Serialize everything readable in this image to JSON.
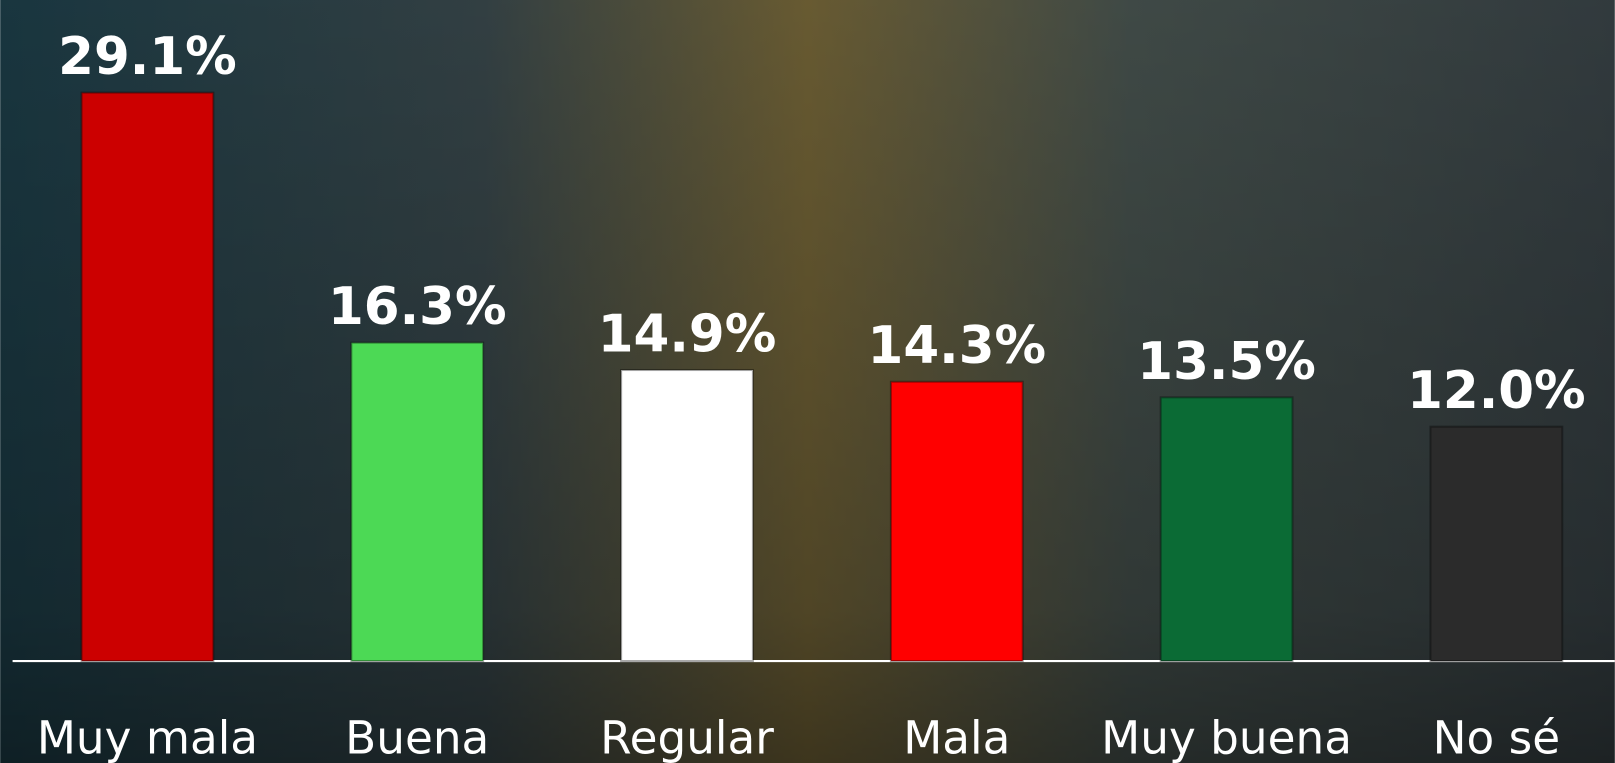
{
  "chart_data": {
    "type": "bar",
    "categories": [
      "Muy mala",
      "Buena",
      "Regular",
      "Mala",
      "Muy buena",
      "No sé"
    ],
    "values": [
      29.1,
      16.3,
      14.9,
      14.3,
      13.5,
      12.0
    ],
    "value_labels": [
      "29.1%",
      "16.3%",
      "14.9%",
      "14.3%",
      "13.5%",
      "12.0%"
    ],
    "colors": [
      "#cc0000",
      "#4cd955",
      "#ffffff",
      "#ff0000",
      "#0b6b35",
      "#2b2b2b"
    ]
  }
}
